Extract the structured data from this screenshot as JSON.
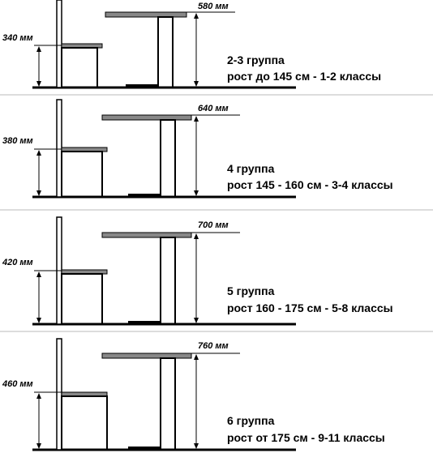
{
  "groups": [
    {
      "chair_height": "340 мм",
      "table_height": "580 мм",
      "group_label": "2-3 группа",
      "description": "рост до 145 см - 1-2 классы"
    },
    {
      "chair_height": "380 мм",
      "table_height": "640 мм",
      "group_label": "4 группа",
      "description": "рост 145 - 160 см - 3-4 классы"
    },
    {
      "chair_height": "420 мм",
      "table_height": "700 мм",
      "group_label": "5 группа",
      "description": "рост 160 - 175 см - 5-8 классы"
    },
    {
      "chair_height": "460 мм",
      "table_height": "760 мм",
      "group_label": "6 группа",
      "description": "рост от 175 см - 9-11 классы"
    }
  ],
  "colors": {
    "line": "#000000",
    "seat_top": "#888888",
    "separator": "#bbbbbb"
  }
}
